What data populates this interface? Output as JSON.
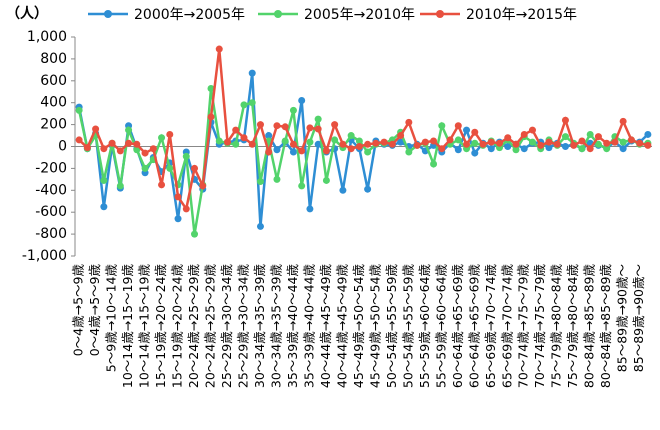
{
  "chart_data": {
    "type": "line",
    "y_label": "（人）",
    "categories": [
      "0～4歳→5～9歳",
      null,
      "0～4歳→5～9歳",
      null,
      "5～9歳→10～14歳",
      null,
      "10～14歳→15～19歳",
      null,
      "10～14歳→15～19歳",
      null,
      "15～19歳→20～24歳",
      null,
      "15～19歳→20～24歳",
      null,
      "20～24歳→25～29歳",
      null,
      "20～24歳→25～29歳",
      null,
      "25～29歳→30～34歳",
      null,
      "25～29歳→30～34歳",
      null,
      "30～34歳→35～39歳",
      null,
      "30～34歳→35～39歳",
      null,
      "35～39歳→40～44歳",
      null,
      "35～39歳→40～44歳",
      null,
      "40～44歳→45～49歳",
      null,
      "40～44歳→45～49歳",
      null,
      "45～49歳→50～54歳",
      null,
      "45～49歳→50～54歳",
      null,
      "50～54歳→55～59歳",
      null,
      "50～54歳→55～59歳",
      null,
      "55～59歳→60～64歳",
      null,
      "55～59歳→60～64歳",
      null,
      "60～64歳→65～69歳",
      null,
      "60～64歳→65～69歳",
      null,
      "65～69歳→70～74歳",
      null,
      "65～69歳→70～74歳",
      null,
      "70～74歳→75～79歳",
      null,
      "70～74歳→75～79歳",
      null,
      "75～79歳→80～84歳",
      null,
      "75～79歳→80～84歳",
      null,
      "80～84歳→85～89歳",
      null,
      "80～84歳→85～89歳",
      null,
      "85～89歳→90歳～",
      null,
      "85～89歳→90歳～",
      null
    ],
    "series": [
      {
        "name": "2000年→2005年",
        "color": "#2e8ed4",
        "values": [
          360,
          -20,
          120,
          -550,
          10,
          -380,
          190,
          -20,
          -240,
          -100,
          -230,
          -150,
          -660,
          -50,
          -300,
          -390,
          220,
          20,
          40,
          50,
          60,
          670,
          -730,
          100,
          -30,
          40,
          -50,
          420,
          -570,
          20,
          -50,
          -20,
          -400,
          60,
          -20,
          -390,
          50,
          20,
          10,
          40,
          0,
          20,
          -40,
          10,
          -50,
          30,
          -30,
          150,
          -60,
          30,
          -20,
          40,
          0,
          20,
          -20,
          30,
          40,
          -10,
          30,
          0,
          20,
          -20,
          30,
          10,
          -10,
          40,
          -20,
          50,
          40,
          110
        ]
      },
      {
        "name": "2005年→2010年",
        "color": "#52d36b",
        "values": [
          330,
          -20,
          100,
          -310,
          30,
          -360,
          150,
          -30,
          -200,
          -120,
          80,
          -200,
          -350,
          -90,
          -800,
          -350,
          530,
          50,
          30,
          20,
          380,
          400,
          -320,
          50,
          -300,
          50,
          330,
          -360,
          40,
          250,
          -310,
          60,
          -10,
          100,
          50,
          -50,
          20,
          30,
          60,
          130,
          -50,
          10,
          30,
          -160,
          190,
          20,
          60,
          -20,
          30,
          10,
          50,
          -10,
          60,
          -30,
          90,
          40,
          -20,
          60,
          10,
          90,
          30,
          -20,
          110,
          20,
          -20,
          90,
          40,
          60,
          20,
          30
        ]
      },
      {
        "name": "2010年→2015年",
        "color": "#e8503f",
        "values": [
          60,
          -10,
          160,
          -20,
          30,
          -40,
          30,
          20,
          -60,
          -20,
          -350,
          110,
          -460,
          -570,
          -200,
          -360,
          270,
          890,
          40,
          150,
          80,
          20,
          200,
          -50,
          190,
          180,
          20,
          -40,
          170,
          160,
          -40,
          200,
          20,
          -20,
          0,
          20,
          30,
          40,
          20,
          100,
          220,
          10,
          40,
          50,
          -20,
          60,
          190,
          20,
          130,
          20,
          40,
          30,
          80,
          20,
          110,
          150,
          10,
          40,
          20,
          240,
          10,
          50,
          -20,
          90,
          30,
          40,
          230,
          60,
          30,
          10
        ]
      }
    ],
    "ylim": [
      -1000,
      1000
    ],
    "yticks": [
      {
        "value": -1000,
        "label": "-1,000"
      },
      -800,
      -600,
      -400,
      -200,
      0,
      200,
      400,
      600,
      800,
      {
        "value": 1000,
        "label": "1,000"
      }
    ]
  }
}
